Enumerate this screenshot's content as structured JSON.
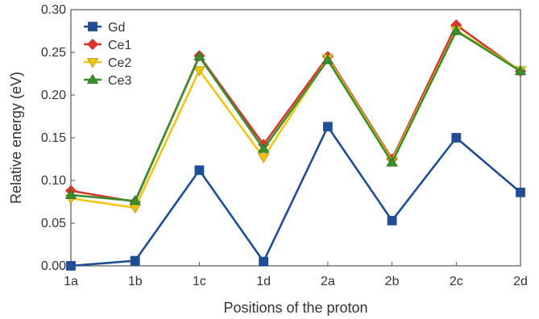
{
  "chart_data": {
    "type": "line",
    "categories": [
      "1a",
      "1b",
      "1c",
      "1d",
      "2a",
      "2b",
      "2c",
      "2d"
    ],
    "xlabel": "Positions of the proton",
    "ylabel": "Relative energy (eV)",
    "ylim": [
      0,
      0.3
    ],
    "yticks": [
      "0.00",
      "0.05",
      "0.10",
      "0.15",
      "0.20",
      "0.25",
      "0.30"
    ],
    "grid": false,
    "legend_position": "top-left",
    "series": [
      {
        "name": "Gd",
        "color": "#1f4e96",
        "marker": "square",
        "values": [
          0.0,
          0.006,
          0.112,
          0.005,
          0.163,
          0.053,
          0.15,
          0.086
        ]
      },
      {
        "name": "Ce1",
        "color": "#d9352a",
        "marker": "diamond",
        "values": [
          0.088,
          0.075,
          0.246,
          0.142,
          0.245,
          0.125,
          0.282,
          0.228
        ]
      },
      {
        "name": "Ce2",
        "color": "#f2c60f",
        "marker": "triangle-down",
        "values": [
          0.079,
          0.068,
          0.229,
          0.127,
          0.243,
          0.123,
          0.276,
          0.229
        ]
      },
      {
        "name": "Ce3",
        "color": "#3a8e2e",
        "marker": "triangle-up",
        "values": [
          0.083,
          0.076,
          0.245,
          0.137,
          0.241,
          0.121,
          0.275,
          0.228
        ]
      }
    ]
  }
}
